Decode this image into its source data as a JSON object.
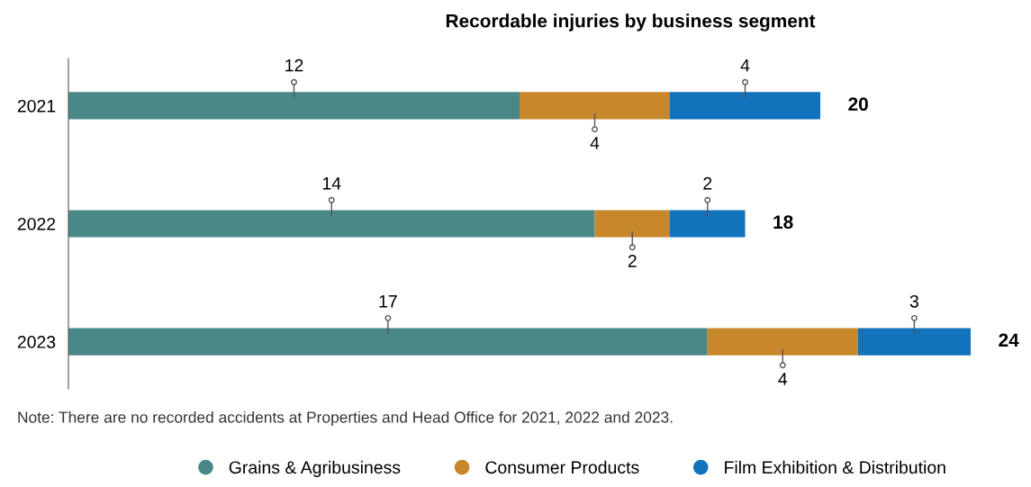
{
  "chart_data": {
    "type": "bar",
    "orientation": "horizontal",
    "stacked": true,
    "title": "Recordable injuries by business segment",
    "categories": [
      "2021",
      "2022",
      "2023"
    ],
    "series": [
      {
        "name": "Grains & Agribusiness",
        "color": "#4a8787",
        "values": [
          12,
          14,
          17
        ]
      },
      {
        "name": "Consumer Products",
        "color": "#c8872b",
        "values": [
          4,
          2,
          4
        ]
      },
      {
        "name": "Film Exhibition & Distribution",
        "color": "#1272bc",
        "values": [
          4,
          2,
          3
        ]
      }
    ],
    "xlim": [
      0,
      24
    ],
    "data_labels": true,
    "totals": [
      "20",
      "18",
      "24"
    ],
    "tick_labels": "y",
    "grid": false,
    "legend": "bottom",
    "annotations": [
      "Note: There are no recorded accidents at Properties and Head Office for 2021, 2022 and 2023."
    ]
  }
}
